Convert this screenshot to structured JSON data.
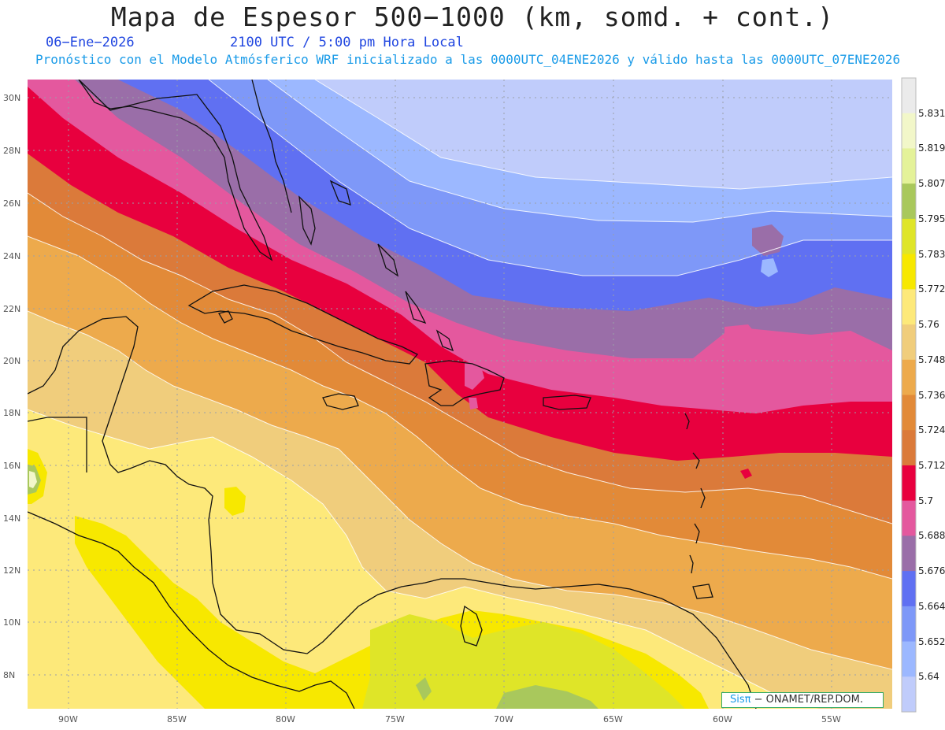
{
  "title": "Mapa de Espesor 500−1000 (km, somd. + cont.)",
  "date": "06−Ene−2026",
  "time": "2100 UTC / 5:00 pm Hora Local",
  "description": "Pronóstico con el Modelo Atmósferico WRF inicializado a las 0000UTC_04ENE2026 y válido hasta las  0000UTC_07ENE2026",
  "credit": {
    "brand": "Sisπ",
    "text": " − ONAMET/REP.DOM."
  },
  "lat_labels": [
    "30N",
    "28N",
    "26N",
    "24N",
    "22N",
    "20N",
    "18N",
    "16N",
    "14N",
    "12N",
    "10N",
    "8N"
  ],
  "lon_labels": [
    "90W",
    "85W",
    "80W",
    "75W",
    "70W",
    "65W",
    "60W",
    "55W"
  ],
  "legend": {
    "labels": [
      "5.831",
      "5.819",
      "5.807",
      "5.795",
      "5.783",
      "5.772",
      "5.76",
      "5.748",
      "5.736",
      "5.724",
      "5.712",
      "5.7",
      "5.688",
      "5.676",
      "5.664",
      "5.652",
      "5.64"
    ],
    "colors": [
      "#ebebeb",
      "#f2f7c9",
      "#e4f299",
      "#a9c85c",
      "#dfe528",
      "#f7e800",
      "#fde97a",
      "#f0cd7c",
      "#edaa4c",
      "#e28a38",
      "#db7a3a",
      "#e8003e",
      "#e4589e",
      "#9a6ea8",
      "#6070f2",
      "#7e98f8",
      "#9cb8ff",
      "#c0ccfb"
    ]
  }
}
